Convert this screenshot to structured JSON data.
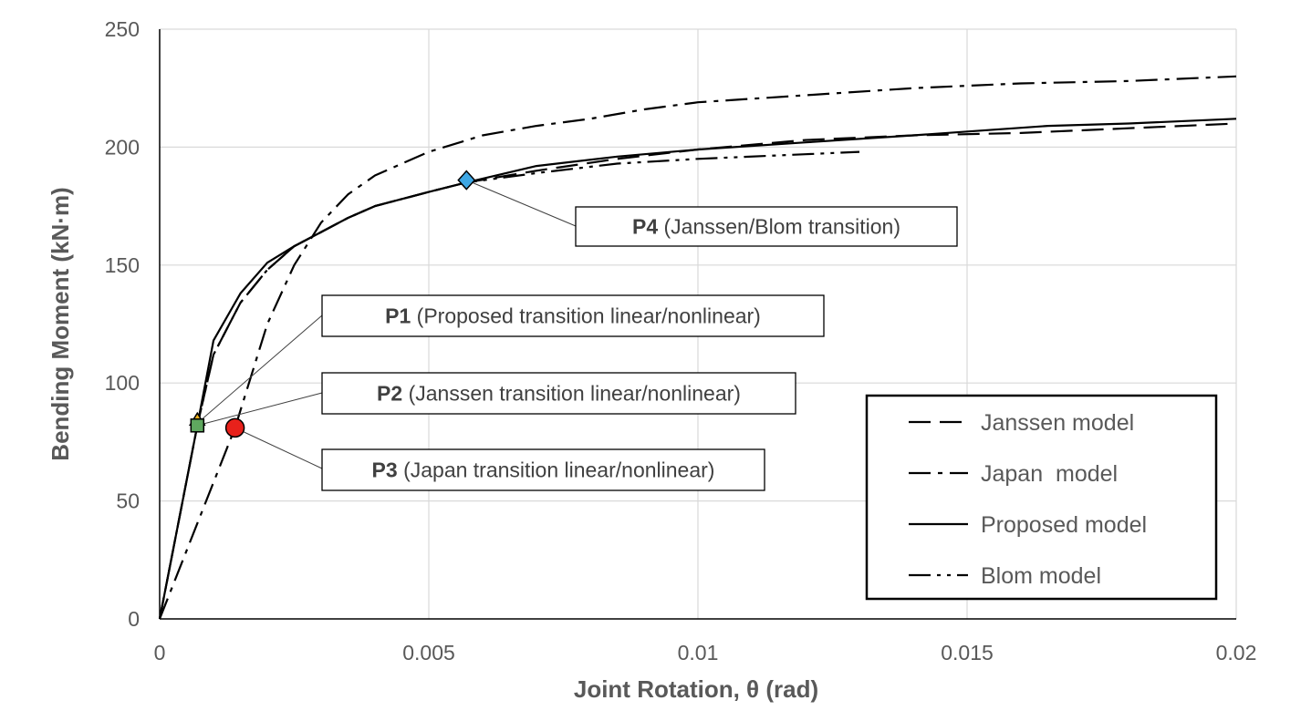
{
  "chart_data": {
    "type": "line",
    "xlabel": "Joint Rotation, θ (rad)",
    "ylabel": "Bending Moment (kN·m)",
    "xlim": [
      0,
      0.02
    ],
    "ylim": [
      0,
      250
    ],
    "x_ticks": [
      "0",
      "0.005",
      "0.01",
      "0.015",
      "0.02"
    ],
    "y_ticks": [
      "0",
      "50",
      "100",
      "150",
      "200",
      "250"
    ],
    "grid": true,
    "legend_position": "bottom-right",
    "series": [
      {
        "name": "Janssen model",
        "dash": "long-dash",
        "x": [
          0,
          0.0007,
          0.001,
          0.0015,
          0.002,
          0.0025,
          0.003,
          0.0035,
          0.004,
          0.005,
          0.0057,
          0.007,
          0.0085,
          0.01,
          0.012,
          0.014,
          0.016,
          0.018,
          0.02
        ],
        "y": [
          0,
          82,
          112,
          134,
          148,
          158,
          164,
          170,
          175,
          181,
          185,
          190,
          195,
          199,
          203,
          205,
          206,
          208,
          210
        ]
      },
      {
        "name": "Japan  model",
        "dash": "dash-dot",
        "x": [
          0,
          0.0014,
          0.002,
          0.0025,
          0.003,
          0.0035,
          0.004,
          0.005,
          0.006,
          0.007,
          0.008,
          0.009,
          0.01,
          0.012,
          0.014,
          0.016,
          0.018,
          0.02
        ],
        "y": [
          0,
          81,
          125,
          150,
          168,
          180,
          188,
          198,
          205,
          209,
          212,
          216,
          219,
          222,
          225,
          227,
          228,
          230
        ]
      },
      {
        "name": "Proposed model",
        "dash": "solid",
        "x": [
          0,
          0.0007,
          0.001,
          0.0015,
          0.002,
          0.0025,
          0.003,
          0.0035,
          0.004,
          0.005,
          0.0057,
          0.007,
          0.0085,
          0.01,
          0.012,
          0.014,
          0.0165,
          0.018,
          0.02
        ],
        "y": [
          0,
          82,
          118,
          138,
          151,
          158,
          164,
          170,
          175,
          181,
          185,
          192,
          196,
          199,
          202,
          205,
          209,
          210,
          212
        ]
      },
      {
        "name": "Blom model",
        "dash": "dash-dot-dot",
        "x": [
          0,
          0.0007,
          0.001,
          0.0015,
          0.002,
          0.0025,
          0.003,
          0.0035,
          0.004,
          0.005,
          0.0057,
          0.007,
          0.0085,
          0.01,
          0.012,
          0.013
        ],
        "y": [
          0,
          82,
          112,
          134,
          148,
          158,
          164,
          170,
          175,
          181,
          185,
          189,
          193,
          195,
          197,
          198
        ]
      }
    ],
    "markers": [
      {
        "x": 0.0007,
        "y": 83,
        "shape": "triangle",
        "color": "#f2b21c",
        "stroke": "#000000",
        "label": "P1"
      },
      {
        "x": 0.0007,
        "y": 82,
        "shape": "square",
        "color": "#5fa85f",
        "stroke": "#000000",
        "label": "P2"
      },
      {
        "x": 0.0014,
        "y": 81,
        "shape": "circle",
        "color": "#e8211b",
        "stroke": "#000000",
        "label": "P3"
      },
      {
        "x": 0.0057,
        "y": 186,
        "shape": "diamond",
        "color": "#3ea7e4",
        "stroke": "#000000",
        "label": "P4"
      }
    ],
    "annotations": [
      {
        "point": "P1",
        "bold": "P1",
        "text": " (Proposed transition linear/nonlinear)"
      },
      {
        "point": "P2",
        "bold": "P2",
        "text": " (Janssen transition linear/nonlinear)"
      },
      {
        "point": "P3",
        "bold": "P3",
        "text": " (Japan transition linear/nonlinear)"
      },
      {
        "point": "P4",
        "bold": "P4",
        "text": " (Janssen/Blom transition)"
      }
    ]
  }
}
